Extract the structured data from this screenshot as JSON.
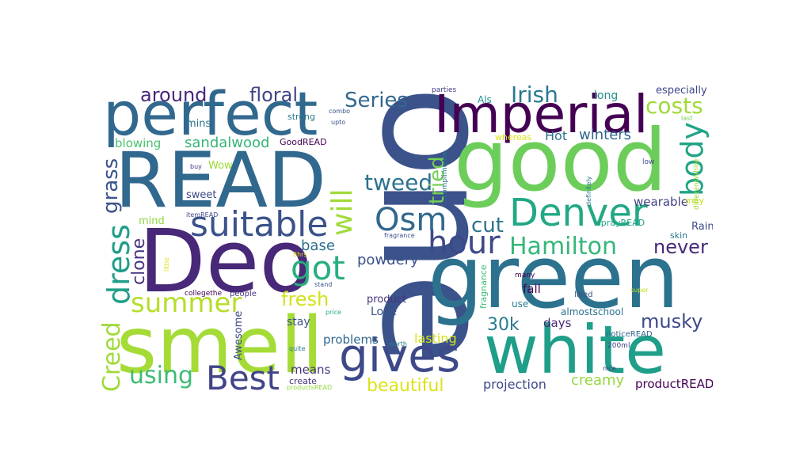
{
  "words": [
    {
      "text": "one",
      "color": "#3b528b"
    },
    {
      "text": "green",
      "color": "#2c728e"
    },
    {
      "text": "good",
      "color": "#6ccd5a"
    },
    {
      "text": "READ",
      "color": "#31688e"
    },
    {
      "text": "smell",
      "color": "#a5db36"
    },
    {
      "text": "white",
      "color": "#1f9e89"
    },
    {
      "text": "Deo",
      "color": "#482878"
    },
    {
      "text": "perfect",
      "color": "#31688e"
    },
    {
      "text": "Imperial",
      "color": "#440154"
    },
    {
      "text": "Denver",
      "color": "#22a884"
    },
    {
      "text": "gives",
      "color": "#3e4989"
    },
    {
      "text": "suitable",
      "color": "#3b528b"
    },
    {
      "text": "Best",
      "color": "#414487"
    },
    {
      "text": "hour",
      "color": "#3e4989"
    },
    {
      "text": "Hamilton",
      "color": "#35b779"
    },
    {
      "text": "summer",
      "color": "#b5de2b"
    },
    {
      "text": "dress",
      "color": "#1f9e89"
    },
    {
      "text": "Creed",
      "color": "#a0da39"
    },
    {
      "text": "Osm",
      "color": "#31688e"
    },
    {
      "text": "got",
      "color": "#29af7f"
    },
    {
      "text": "will",
      "color": "#a0da39"
    },
    {
      "text": "body",
      "color": "#20a486"
    },
    {
      "text": "tweed",
      "color": "#2c728e"
    },
    {
      "text": "cut",
      "color": "#2c728e"
    },
    {
      "text": "using",
      "color": "#3dbc74"
    },
    {
      "text": "costs",
      "color": "#a0da39"
    },
    {
      "text": "Series",
      "color": "#31688e"
    },
    {
      "text": "Irish",
      "color": "#2a788e"
    },
    {
      "text": "tried",
      "color": "#75d054"
    },
    {
      "text": "never",
      "color": "#482878"
    },
    {
      "text": "musky",
      "color": "#3e4989"
    },
    {
      "text": "fresh",
      "color": "#d2e21b"
    },
    {
      "text": "beautiful",
      "color": "#dde318"
    },
    {
      "text": "30k",
      "color": "#287d8e"
    },
    {
      "text": "grass",
      "color": "#3b528b"
    },
    {
      "text": "clone",
      "color": "#46337f"
    },
    {
      "text": "around",
      "color": "#482878"
    },
    {
      "text": "floral",
      "color": "#414487"
    },
    {
      "text": "powdery",
      "color": "#3b528b"
    },
    {
      "text": "base",
      "color": "#2c728e"
    },
    {
      "text": "projection",
      "color": "#3e4989"
    },
    {
      "text": "creamy",
      "color": "#95d840"
    },
    {
      "text": "sandalwood",
      "color": "#35b779"
    },
    {
      "text": "blowing",
      "color": "#4ac16d"
    },
    {
      "text": "Hot",
      "color": "#2c728e"
    },
    {
      "text": "winters",
      "color": "#31688e"
    },
    {
      "text": "lasting",
      "color": "#d2e21b"
    },
    {
      "text": "productREAD",
      "color": "#440154"
    },
    {
      "text": "problems",
      "color": "#31688e"
    },
    {
      "text": "means",
      "color": "#46337f"
    },
    {
      "text": "days",
      "color": "#482878"
    },
    {
      "text": "fall",
      "color": "#440154"
    },
    {
      "text": "wearable",
      "color": "#414487"
    },
    {
      "text": "Rainy",
      "color": "#3e4989"
    },
    {
      "text": "especially",
      "color": "#3e4989"
    },
    {
      "text": "long",
      "color": "#21918c"
    },
    {
      "text": "stay",
      "color": "#3b528b"
    },
    {
      "text": "Love",
      "color": "#3b528b"
    },
    {
      "text": "product",
      "color": "#46337f"
    },
    {
      "text": "Awesome",
      "color": "#3e4989"
    },
    {
      "text": "Wow",
      "color": "#a0da39"
    },
    {
      "text": "sweet",
      "color": "#3e4989"
    },
    {
      "text": "mins",
      "color": "#2c728e"
    },
    {
      "text": "mind",
      "color": "#90d743"
    },
    {
      "text": "Als",
      "color": "#21918c"
    },
    {
      "text": "GoodREAD",
      "color": "#440154"
    },
    {
      "text": "strong",
      "color": "#2a788e"
    },
    {
      "text": "fragnance",
      "color": "#3dbc74"
    },
    {
      "text": "almostschool",
      "color": "#2c728e"
    },
    {
      "text": "use",
      "color": "#287d8e"
    },
    {
      "text": "whereas",
      "color": "#dde318"
    },
    {
      "text": "sprayREAD",
      "color": "#20a486"
    },
    {
      "text": "skin",
      "color": "#2a788e"
    },
    {
      "text": "may",
      "color": "#c8e020"
    },
    {
      "text": "create",
      "color": "#46337f"
    },
    {
      "text": "people",
      "color": "#46337f"
    },
    {
      "text": "liked",
      "color": "#3b528b"
    },
    {
      "text": "many",
      "color": "#440154"
    },
    {
      "text": "noticeREAD",
      "color": "#31688e"
    },
    {
      "text": "200ml",
      "color": "#3e4989"
    },
    {
      "text": "nice",
      "color": "#46337f"
    },
    {
      "text": "low",
      "color": "#3e4989"
    },
    {
      "text": "last",
      "color": "#75d054"
    },
    {
      "text": "parties",
      "color": "#443983"
    },
    {
      "text": "combo",
      "color": "#3b528b"
    },
    {
      "text": "upto",
      "color": "#3b528b"
    },
    {
      "text": "buy",
      "color": "#46337f"
    },
    {
      "text": "compliments",
      "color": "#2a788e"
    },
    {
      "text": "definitely",
      "color": "#2a788e"
    },
    {
      "text": "differentWhite",
      "color": "#a0da39"
    },
    {
      "text": "itemREAD",
      "color": "#3e4989"
    },
    {
      "text": "fragrance",
      "color": "#3b528b"
    },
    {
      "text": "little",
      "color": "#dde318"
    },
    {
      "text": "8hrs",
      "color": "#dde318"
    },
    {
      "text": "collegethe",
      "color": "#440154"
    },
    {
      "text": "stand",
      "color": "#3b528b"
    },
    {
      "text": "price",
      "color": "#22a884"
    },
    {
      "text": "quite",
      "color": "#2a788e"
    },
    {
      "text": "worth",
      "color": "#287d8e"
    },
    {
      "text": "super",
      "color": "#c8e020"
    },
    {
      "text": "productsREAD",
      "color": "#95d840"
    }
  ]
}
